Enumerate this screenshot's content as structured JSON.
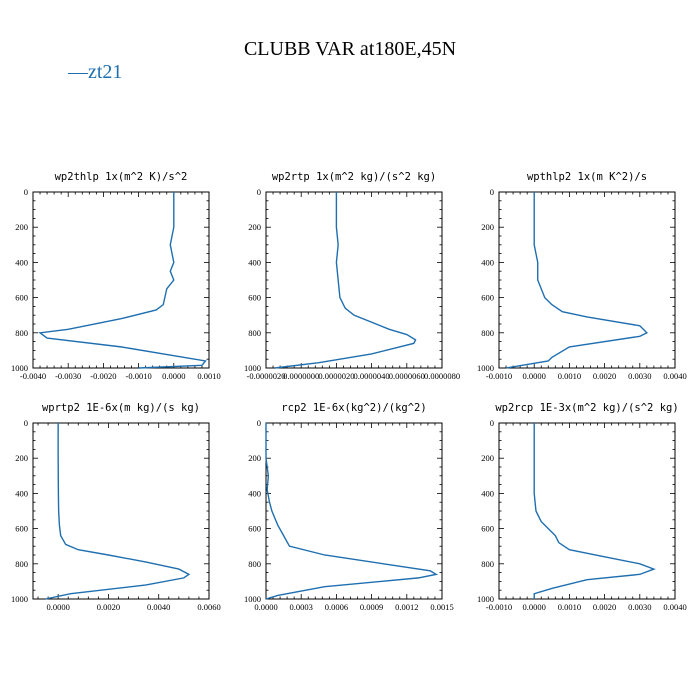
{
  "figure": {
    "title": "CLUBB VAR at180E,45N",
    "legend": {
      "symbol": "—",
      "label": "zt21",
      "color": "#1f6fb0"
    }
  },
  "chart_data": [
    {
      "type": "line",
      "title": "wp2thlp   1x(m^2 K)/s^2",
      "series": [
        {
          "name": "zt21",
          "color": "#1f6fb0",
          "x": [
            0,
            0,
            -0.0001,
            0,
            -0.0001,
            0,
            -0.0002,
            -0.0003,
            -0.0005,
            -0.0015,
            -0.003,
            -0.0038,
            -0.0036,
            -0.0015,
            0.0009,
            0.0008,
            -0.001
          ],
          "y": [
            0,
            200,
            300,
            400,
            450,
            500,
            550,
            640,
            670,
            720,
            780,
            800,
            830,
            880,
            960,
            985,
            1000
          ]
        }
      ],
      "xlim": [
        -0.004,
        0.001
      ],
      "ylim": [
        0,
        1000
      ],
      "xticks": [
        -0.004,
        -0.003,
        -0.002,
        -0.001,
        0,
        0.001
      ],
      "xtick_labels": [
        "-0.0040",
        "-0.0030",
        "-0.0020",
        "-0.0010",
        "0.0000",
        "0.0010"
      ],
      "yticks": [
        0,
        200,
        400,
        600,
        800,
        1000
      ],
      "ytick_labels": [
        "0",
        "200",
        "400",
        "600",
        "800",
        "1000"
      ]
    },
    {
      "type": "line",
      "title": "wp2rtp   1x(m^2 kg)/(s^2 kg)",
      "series": [
        {
          "name": "zt21",
          "color": "#1f6fb0",
          "x": [
            2e-06,
            2e-06,
            2.1e-06,
            2e-06,
            2.1e-06,
            2.2e-06,
            2.5e-06,
            3e-06,
            5e-06,
            6e-06,
            6.5e-06,
            6.4e-06,
            4e-06,
            1e-06,
            -1.5e-06
          ],
          "y": [
            0,
            200,
            300,
            400,
            500,
            600,
            660,
            700,
            780,
            810,
            840,
            860,
            920,
            970,
            1000
          ]
        }
      ],
      "xlim": [
        -2e-06,
        8e-06
      ],
      "ylim": [
        0,
        1000
      ],
      "xticks": [
        -2e-06,
        0,
        2e-06,
        4e-06,
        6e-06,
        8e-06
      ],
      "xtick_labels": [
        "-0.0000020",
        "0.0000000",
        "0.0000020",
        "0.0000040",
        "0.0000060",
        "0.0000080"
      ],
      "yticks": [
        0,
        200,
        400,
        600,
        800,
        1000
      ],
      "ytick_labels": [
        "0",
        "200",
        "400",
        "600",
        "800",
        "1000"
      ]
    },
    {
      "type": "line",
      "title": "wpthlp2   1x(m K^2)/s",
      "series": [
        {
          "name": "zt21",
          "color": "#1f6fb0",
          "x": [
            0,
            0,
            0,
            0.0001,
            0.0001,
            0.0002,
            0.0003,
            0.0005,
            0.0008,
            0.0015,
            0.003,
            0.0032,
            0.003,
            0.001,
            0.0005,
            0.0004,
            -0.0008
          ],
          "y": [
            0,
            200,
            300,
            400,
            500,
            550,
            600,
            640,
            680,
            710,
            760,
            800,
            820,
            880,
            940,
            960,
            1000
          ]
        }
      ],
      "xlim": [
        -0.001,
        0.004
      ],
      "ylim": [
        0,
        1000
      ],
      "xticks": [
        -0.001,
        0,
        0.001,
        0.002,
        0.003,
        0.004
      ],
      "xtick_labels": [
        "-0.0010",
        "0.0000",
        "0.0010",
        "0.0020",
        "0.0030",
        "0.0040"
      ],
      "yticks": [
        0,
        200,
        400,
        600,
        800,
        1000
      ],
      "ytick_labels": [
        "0",
        "200",
        "400",
        "600",
        "800",
        "1000"
      ]
    },
    {
      "type": "line",
      "title": "wprtp2   1E-6x(m kg)/(s kg)",
      "series": [
        {
          "name": "zt21",
          "color": "#1f6fb0",
          "x": [
            0,
            0,
            1e-05,
            2e-05,
            5e-05,
            0.0001,
            0.0003,
            0.0008,
            0.002,
            0.0035,
            0.0048,
            0.0052,
            0.005,
            0.0035,
            0.0005,
            -0.0005
          ],
          "y": [
            0,
            200,
            400,
            500,
            580,
            640,
            690,
            720,
            750,
            790,
            830,
            860,
            880,
            920,
            970,
            1000
          ]
        }
      ],
      "xlim": [
        -0.001,
        0.006
      ],
      "ylim": [
        0,
        1000
      ],
      "xticks": [
        0,
        0.002,
        0.004,
        0.006
      ],
      "xtick_labels": [
        "0.0000",
        "0.0020",
        "0.0040",
        "0.0060"
      ],
      "yticks": [
        0,
        200,
        400,
        600,
        800,
        1000
      ],
      "ytick_labels": [
        "0",
        "200",
        "400",
        "600",
        "800",
        "1000"
      ]
    },
    {
      "type": "line",
      "title": "rcp2   1E-6x(kg^2)/(kg^2)",
      "series": [
        {
          "name": "zt21",
          "color": "#1f6fb0",
          "x": [
            0,
            0,
            2e-05,
            1e-05,
            3e-05,
            5e-05,
            0.0001,
            0.00015,
            0.0002,
            0.0005,
            0.001,
            0.0014,
            0.00145,
            0.0013,
            0.0005,
            0.0001,
            0
          ],
          "y": [
            0,
            200,
            300,
            380,
            450,
            500,
            580,
            640,
            700,
            750,
            800,
            840,
            860,
            880,
            930,
            980,
            1000
          ]
        }
      ],
      "xlim": [
        0,
        0.0015
      ],
      "ylim": [
        0,
        1000
      ],
      "xticks": [
        0,
        0.0003,
        0.0006,
        0.0009,
        0.0012,
        0.0015
      ],
      "xtick_labels": [
        "0.0000",
        "0.0003",
        "0.0006",
        "0.0009",
        "0.0012",
        "0.0015"
      ],
      "yticks": [
        0,
        200,
        400,
        600,
        800,
        1000
      ],
      "ytick_labels": [
        "0",
        "200",
        "400",
        "600",
        "800",
        "1000"
      ]
    },
    {
      "type": "line",
      "title": "wp2rcp   1E-3x(m^2 kg)/(s^2 kg)",
      "series": [
        {
          "name": "zt21",
          "color": "#1f6fb0",
          "x": [
            0,
            0,
            0,
            5e-05,
            0.0002,
            0.0004,
            0.0006,
            0.0007,
            0.001,
            0.002,
            0.003,
            0.0034,
            0.003,
            0.0015,
            0.0005,
            0,
            0
          ],
          "y": [
            0,
            200,
            400,
            500,
            560,
            600,
            640,
            680,
            720,
            760,
            800,
            830,
            860,
            890,
            940,
            970,
            1000
          ]
        }
      ],
      "xlim": [
        -0.001,
        0.004
      ],
      "ylim": [
        0,
        1000
      ],
      "xticks": [
        -0.001,
        0,
        0.001,
        0.002,
        0.003,
        0.004
      ],
      "xtick_labels": [
        "-0.0010",
        "0.0000",
        "0.0010",
        "0.0020",
        "0.0030",
        "0.0040"
      ],
      "yticks": [
        0,
        200,
        400,
        600,
        800,
        1000
      ],
      "ytick_labels": [
        "0",
        "200",
        "400",
        "600",
        "800",
        "1000"
      ]
    }
  ]
}
